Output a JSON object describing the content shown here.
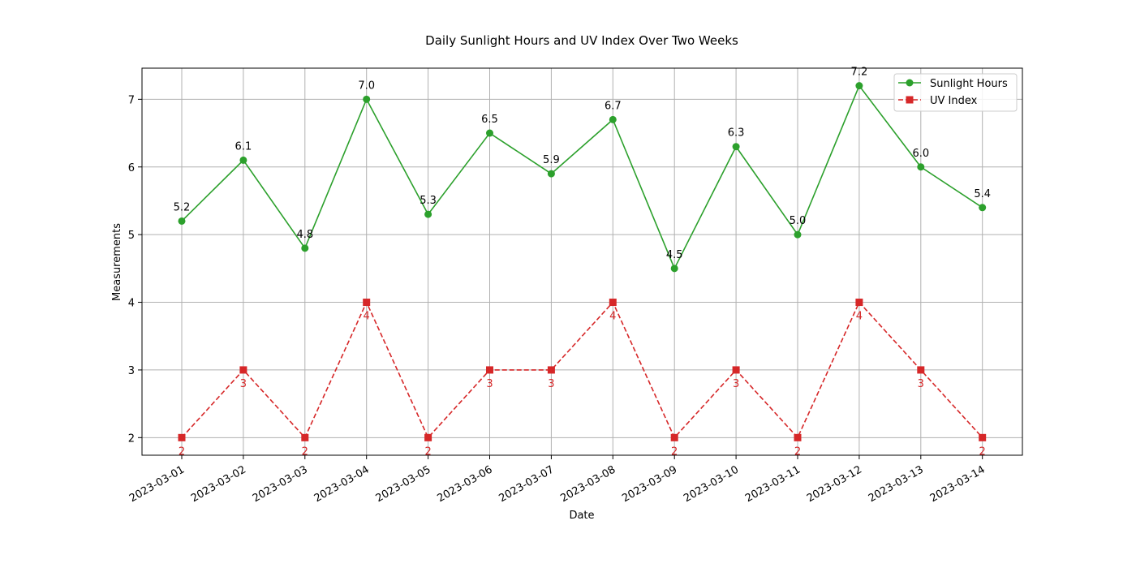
{
  "chart_data": {
    "type": "line",
    "title": "Daily Sunlight Hours and UV Index Over Two Weeks",
    "xlabel": "Date",
    "ylabel": "Measurements",
    "categories": [
      "2023-03-01",
      "2023-03-02",
      "2023-03-03",
      "2023-03-04",
      "2023-03-05",
      "2023-03-06",
      "2023-03-07",
      "2023-03-08",
      "2023-03-09",
      "2023-03-10",
      "2023-03-11",
      "2023-03-12",
      "2023-03-13",
      "2023-03-14"
    ],
    "ylim": [
      1.74,
      7.46
    ],
    "yticks": [
      2,
      3,
      4,
      5,
      6,
      7
    ],
    "grid": true,
    "legend_position": "upper right",
    "series": [
      {
        "name": "Sunlight Hours",
        "color": "#2ca02c",
        "marker": "circle",
        "linestyle": "solid",
        "label_position": "above",
        "values": [
          5.2,
          6.1,
          4.8,
          7.0,
          5.3,
          6.5,
          5.9,
          6.7,
          4.5,
          6.3,
          5.0,
          7.2,
          6.0,
          5.4
        ],
        "labels": [
          "5.2",
          "6.1",
          "4.8",
          "7.0",
          "5.3",
          "6.5",
          "5.9",
          "6.7",
          "4.5",
          "6.3",
          "5.0",
          "7.2",
          "6.0",
          "5.4"
        ]
      },
      {
        "name": "UV Index",
        "color": "#d62728",
        "marker": "square",
        "linestyle": "dashed",
        "label_position": "below",
        "values": [
          2,
          3,
          2,
          4,
          2,
          3,
          3,
          4,
          2,
          3,
          2,
          4,
          3,
          2
        ],
        "labels": [
          "2",
          "3",
          "2",
          "4",
          "2",
          "3",
          "3",
          "4",
          "2",
          "3",
          "2",
          "4",
          "3",
          "2"
        ]
      }
    ]
  }
}
